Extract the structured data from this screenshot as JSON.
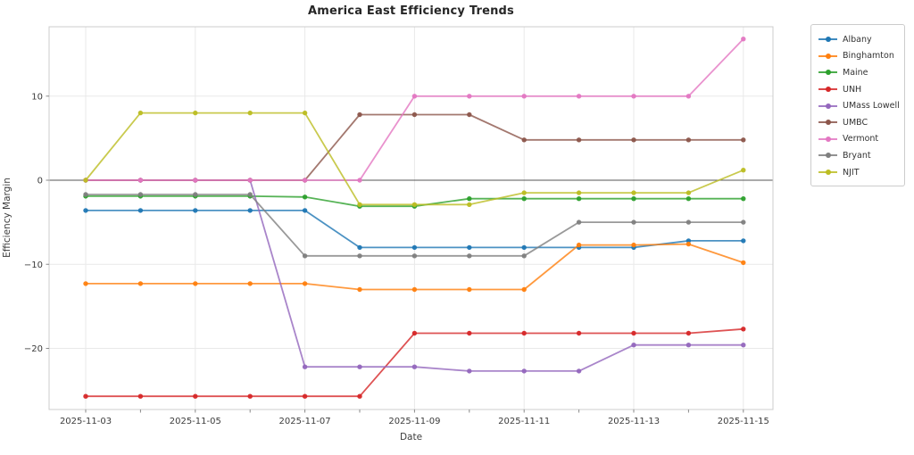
{
  "title": "America East Efficiency Trends",
  "chart_data": {
    "type": "line",
    "title": "America East Efficiency Trends",
    "xlabel": "Date",
    "ylabel": "Efficiency Margin",
    "x": [
      "2025-11-03",
      "2025-11-04",
      "2025-11-05",
      "2025-11-06",
      "2025-11-07",
      "2025-11-08",
      "2025-11-09",
      "2025-11-10",
      "2025-11-11",
      "2025-11-12",
      "2025-11-13",
      "2025-11-14",
      "2025-11-15"
    ],
    "x_major_tick_labels": [
      "2025-11-03",
      "2025-11-05",
      "2025-11-07",
      "2025-11-09",
      "2025-11-11",
      "2025-11-13",
      "2025-11-15"
    ],
    "y_ticks": [
      {
        "value": 10,
        "label": "10"
      },
      {
        "value": 0,
        "label": "0"
      },
      {
        "value": -10,
        "label": "−10"
      },
      {
        "value": -20,
        "label": "−20"
      }
    ],
    "ylim": [
      -27.5,
      18.3
    ],
    "grid": true,
    "zero_line": true,
    "legend_position": "outside-right",
    "series": [
      {
        "name": "Albany",
        "color": "#1f77b4",
        "values": [
          -3.6,
          -3.6,
          -3.6,
          -3.6,
          -3.6,
          -8.0,
          -8.0,
          -8.0,
          -8.0,
          -8.0,
          -8.0,
          -7.2,
          -7.2
        ]
      },
      {
        "name": "Binghamton",
        "color": "#ff7f0e",
        "values": [
          -12.3,
          -12.3,
          -12.3,
          -12.3,
          -12.3,
          -13.0,
          -13.0,
          -13.0,
          -13.0,
          -7.7,
          -7.7,
          -7.6,
          -9.8
        ]
      },
      {
        "name": "Maine",
        "color": "#2ca02c",
        "values": [
          -1.9,
          -1.9,
          -1.9,
          -1.9,
          -2.0,
          -3.1,
          -3.1,
          -2.2,
          -2.2,
          -2.2,
          -2.2,
          -2.2,
          -2.2
        ]
      },
      {
        "name": "UNH",
        "color": "#d62728",
        "values": [
          -25.7,
          -25.7,
          -25.7,
          -25.7,
          -25.7,
          -25.7,
          -18.2,
          -18.2,
          -18.2,
          -18.2,
          -18.2,
          -18.2,
          -17.7
        ]
      },
      {
        "name": "UMass Lowell",
        "color": "#9467bd",
        "values": [
          0.0,
          0.0,
          0.0,
          0.0,
          -22.2,
          -22.2,
          -22.2,
          -22.7,
          -22.7,
          -22.7,
          -19.6,
          -19.6,
          -19.6
        ]
      },
      {
        "name": "UMBC",
        "color": "#8c564b",
        "values": [
          0.0,
          0.0,
          0.0,
          0.0,
          0.0,
          7.8,
          7.8,
          7.8,
          4.8,
          4.8,
          4.8,
          4.8,
          4.8
        ]
      },
      {
        "name": "Vermont",
        "color": "#e377c2",
        "values": [
          0.0,
          0.0,
          0.0,
          0.0,
          0.0,
          0.0,
          10.0,
          10.0,
          10.0,
          10.0,
          10.0,
          10.0,
          16.8
        ]
      },
      {
        "name": "Bryant",
        "color": "#7f7f7f",
        "values": [
          -1.7,
          -1.7,
          -1.7,
          -1.7,
          -9.0,
          -9.0,
          -9.0,
          -9.0,
          -9.0,
          -5.0,
          -5.0,
          -5.0,
          -5.0
        ]
      },
      {
        "name": "NJIT",
        "color": "#bcbd22",
        "values": [
          0.0,
          8.0,
          8.0,
          8.0,
          8.0,
          -2.9,
          -2.9,
          -2.9,
          -1.5,
          -1.5,
          -1.5,
          -1.5,
          1.2
        ]
      }
    ],
    "style": {
      "grid_color": "#e9e9e9",
      "spine_color": "#cccccc",
      "zero_line_color": "#555555",
      "tick_color": "#8a8a8a",
      "line_opacity": 0.8
    }
  }
}
